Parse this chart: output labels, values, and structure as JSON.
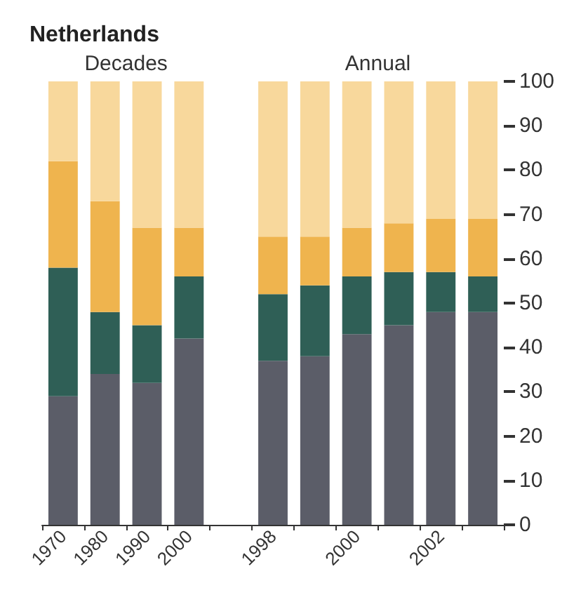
{
  "chart_data": {
    "type": "bar",
    "title": "Netherlands",
    "stacked": true,
    "categories": [
      "1970",
      "1980",
      "1990",
      "2000",
      null,
      "1998",
      null,
      "2000",
      null,
      "2002",
      null
    ],
    "series": [
      {
        "color": "#5b5d68",
        "values": [
          29,
          34,
          32,
          42,
          null,
          37,
          38,
          43,
          45,
          48,
          48
        ]
      },
      {
        "color": "#2f5f56",
        "values": [
          29,
          14,
          13,
          14,
          null,
          15,
          16,
          13,
          12,
          9,
          8
        ]
      },
      {
        "color": "#efb44e",
        "values": [
          24,
          25,
          22,
          11,
          null,
          13,
          11,
          11,
          11,
          12,
          13
        ]
      },
      {
        "color": "#f8d89c",
        "values": [
          18,
          27,
          33,
          33,
          null,
          35,
          35,
          33,
          32,
          31,
          31
        ]
      }
    ],
    "ylim": [
      0,
      100
    ],
    "yticks": [
      0,
      10,
      20,
      30,
      40,
      50,
      60,
      70,
      80,
      90,
      100
    ],
    "annotations": [
      "Decades",
      "Annual"
    ],
    "grid": false
  }
}
